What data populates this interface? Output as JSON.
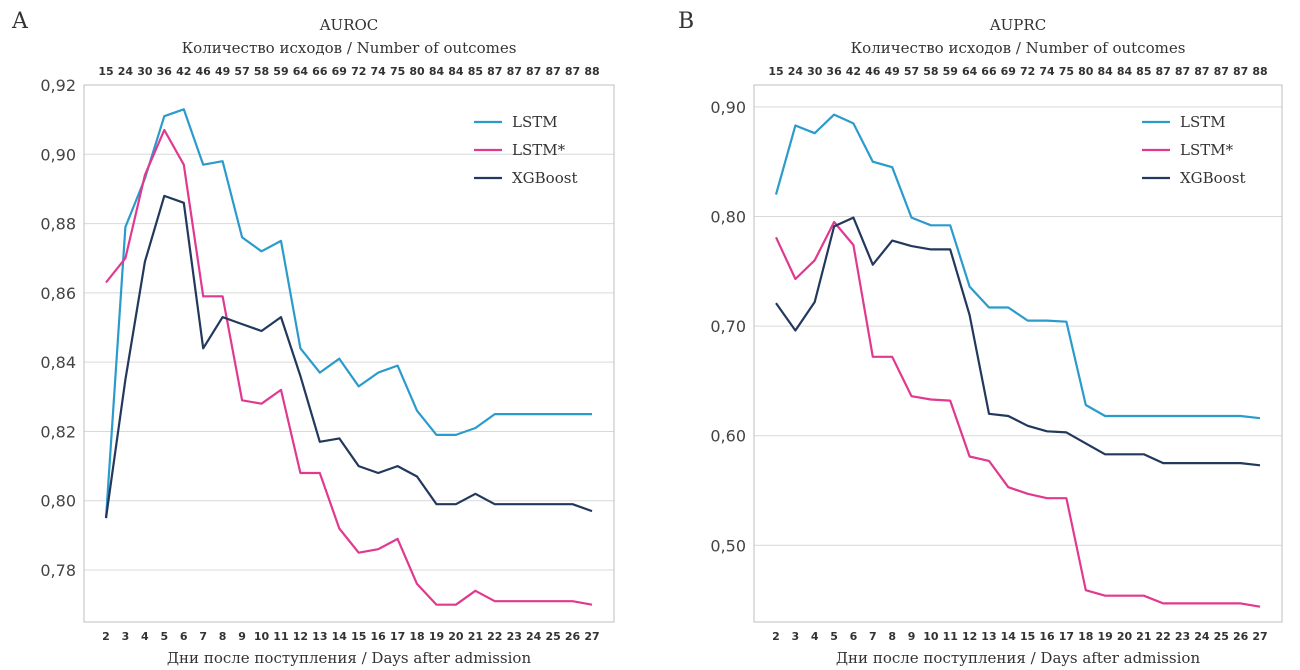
{
  "figure": {
    "panels": [
      "A",
      "B"
    ]
  },
  "chart_data": [
    {
      "type": "line",
      "panel_label": "A",
      "title": "AUROC",
      "top_axis_label": "Количество исходов / Number of outcomes",
      "top_axis_ticks": [
        "15",
        "24",
        "30",
        "36",
        "42",
        "46",
        "49",
        "57",
        "58",
        "59",
        "64",
        "66",
        "69",
        "72",
        "74",
        "75",
        "80",
        "84",
        "84",
        "85",
        "87",
        "87",
        "87",
        "87",
        "87",
        "88"
      ],
      "xlabel": "Дни после поступления / Days after admission",
      "ylabel": "",
      "x": [
        2,
        3,
        4,
        5,
        6,
        7,
        8,
        9,
        10,
        11,
        12,
        13,
        14,
        15,
        16,
        17,
        18,
        19,
        20,
        21,
        22,
        23,
        24,
        25,
        26,
        27
      ],
      "ylim": [
        0.765,
        0.92
      ],
      "yticks": [
        0.78,
        0.8,
        0.82,
        0.84,
        0.86,
        0.88,
        0.9,
        0.92
      ],
      "ytick_labels": [
        "0,78",
        "0,80",
        "0,82",
        "0,84",
        "0,86",
        "0,88",
        "0,90",
        "0,92"
      ],
      "grid": "horizontal",
      "legend_position": "top-right",
      "series": [
        {
          "name": "LSTM",
          "color": "#2b9bcc",
          "values": [
            0.795,
            0.879,
            0.893,
            0.911,
            0.913,
            0.897,
            0.898,
            0.876,
            0.872,
            0.875,
            0.844,
            0.837,
            0.841,
            0.833,
            0.837,
            0.839,
            0.826,
            0.819,
            0.819,
            0.821,
            0.825,
            0.825,
            0.825,
            0.825,
            0.825,
            0.825
          ]
        },
        {
          "name": "LSTM*",
          "color": "#e0398f",
          "values": [
            0.863,
            0.87,
            0.894,
            0.907,
            0.897,
            0.859,
            0.859,
            0.829,
            0.828,
            0.832,
            0.808,
            0.808,
            0.792,
            0.785,
            0.786,
            0.789,
            0.776,
            0.77,
            0.77,
            0.774,
            0.771,
            0.771,
            0.771,
            0.771,
            0.771,
            0.77
          ]
        },
        {
          "name": "XGBoost",
          "color": "#22385c",
          "values": [
            0.795,
            0.835,
            0.869,
            0.888,
            0.886,
            0.844,
            0.853,
            0.851,
            0.849,
            0.853,
            0.836,
            0.817,
            0.818,
            0.81,
            0.808,
            0.81,
            0.807,
            0.799,
            0.799,
            0.802,
            0.799,
            0.799,
            0.799,
            0.799,
            0.799,
            0.797
          ]
        }
      ]
    },
    {
      "type": "line",
      "panel_label": "B",
      "title": "AUPRC",
      "top_axis_label": "Количество исходов / Number of outcomes",
      "top_axis_ticks": [
        "15",
        "24",
        "30",
        "36",
        "42",
        "46",
        "49",
        "57",
        "58",
        "59",
        "64",
        "66",
        "69",
        "72",
        "74",
        "75",
        "80",
        "84",
        "84",
        "85",
        "87",
        "87",
        "87",
        "87",
        "87",
        "88"
      ],
      "xlabel": "Дни после поступления / Days after admission",
      "ylabel": "",
      "x": [
        2,
        3,
        4,
        5,
        6,
        7,
        8,
        9,
        10,
        11,
        12,
        13,
        14,
        15,
        16,
        17,
        18,
        19,
        20,
        21,
        22,
        23,
        24,
        25,
        26,
        27
      ],
      "ylim": [
        0.43,
        0.92
      ],
      "yticks": [
        0.5,
        0.6,
        0.7,
        0.8,
        0.9
      ],
      "ytick_labels": [
        "0,50",
        "0,60",
        "0,70",
        "0,80",
        "0,90"
      ],
      "grid": "horizontal",
      "legend_position": "top-right",
      "series": [
        {
          "name": "LSTM",
          "color": "#2b9bcc",
          "values": [
            0.82,
            0.883,
            0.876,
            0.893,
            0.885,
            0.85,
            0.845,
            0.799,
            0.792,
            0.792,
            0.736,
            0.717,
            0.717,
            0.705,
            0.705,
            0.704,
            0.628,
            0.618,
            0.618,
            0.618,
            0.618,
            0.618,
            0.618,
            0.618,
            0.618,
            0.616
          ]
        },
        {
          "name": "LSTM*",
          "color": "#e0398f",
          "values": [
            0.781,
            0.743,
            0.76,
            0.795,
            0.774,
            0.672,
            0.672,
            0.636,
            0.633,
            0.632,
            0.581,
            0.577,
            0.553,
            0.547,
            0.543,
            0.543,
            0.459,
            0.454,
            0.454,
            0.454,
            0.447,
            0.447,
            0.447,
            0.447,
            0.447,
            0.444
          ]
        },
        {
          "name": "XGBoost",
          "color": "#22385c",
          "values": [
            0.721,
            0.696,
            0.722,
            0.791,
            0.799,
            0.756,
            0.778,
            0.773,
            0.77,
            0.77,
            0.71,
            0.62,
            0.618,
            0.609,
            0.604,
            0.603,
            0.593,
            0.583,
            0.583,
            0.583,
            0.575,
            0.575,
            0.575,
            0.575,
            0.575,
            0.573
          ]
        }
      ]
    }
  ]
}
